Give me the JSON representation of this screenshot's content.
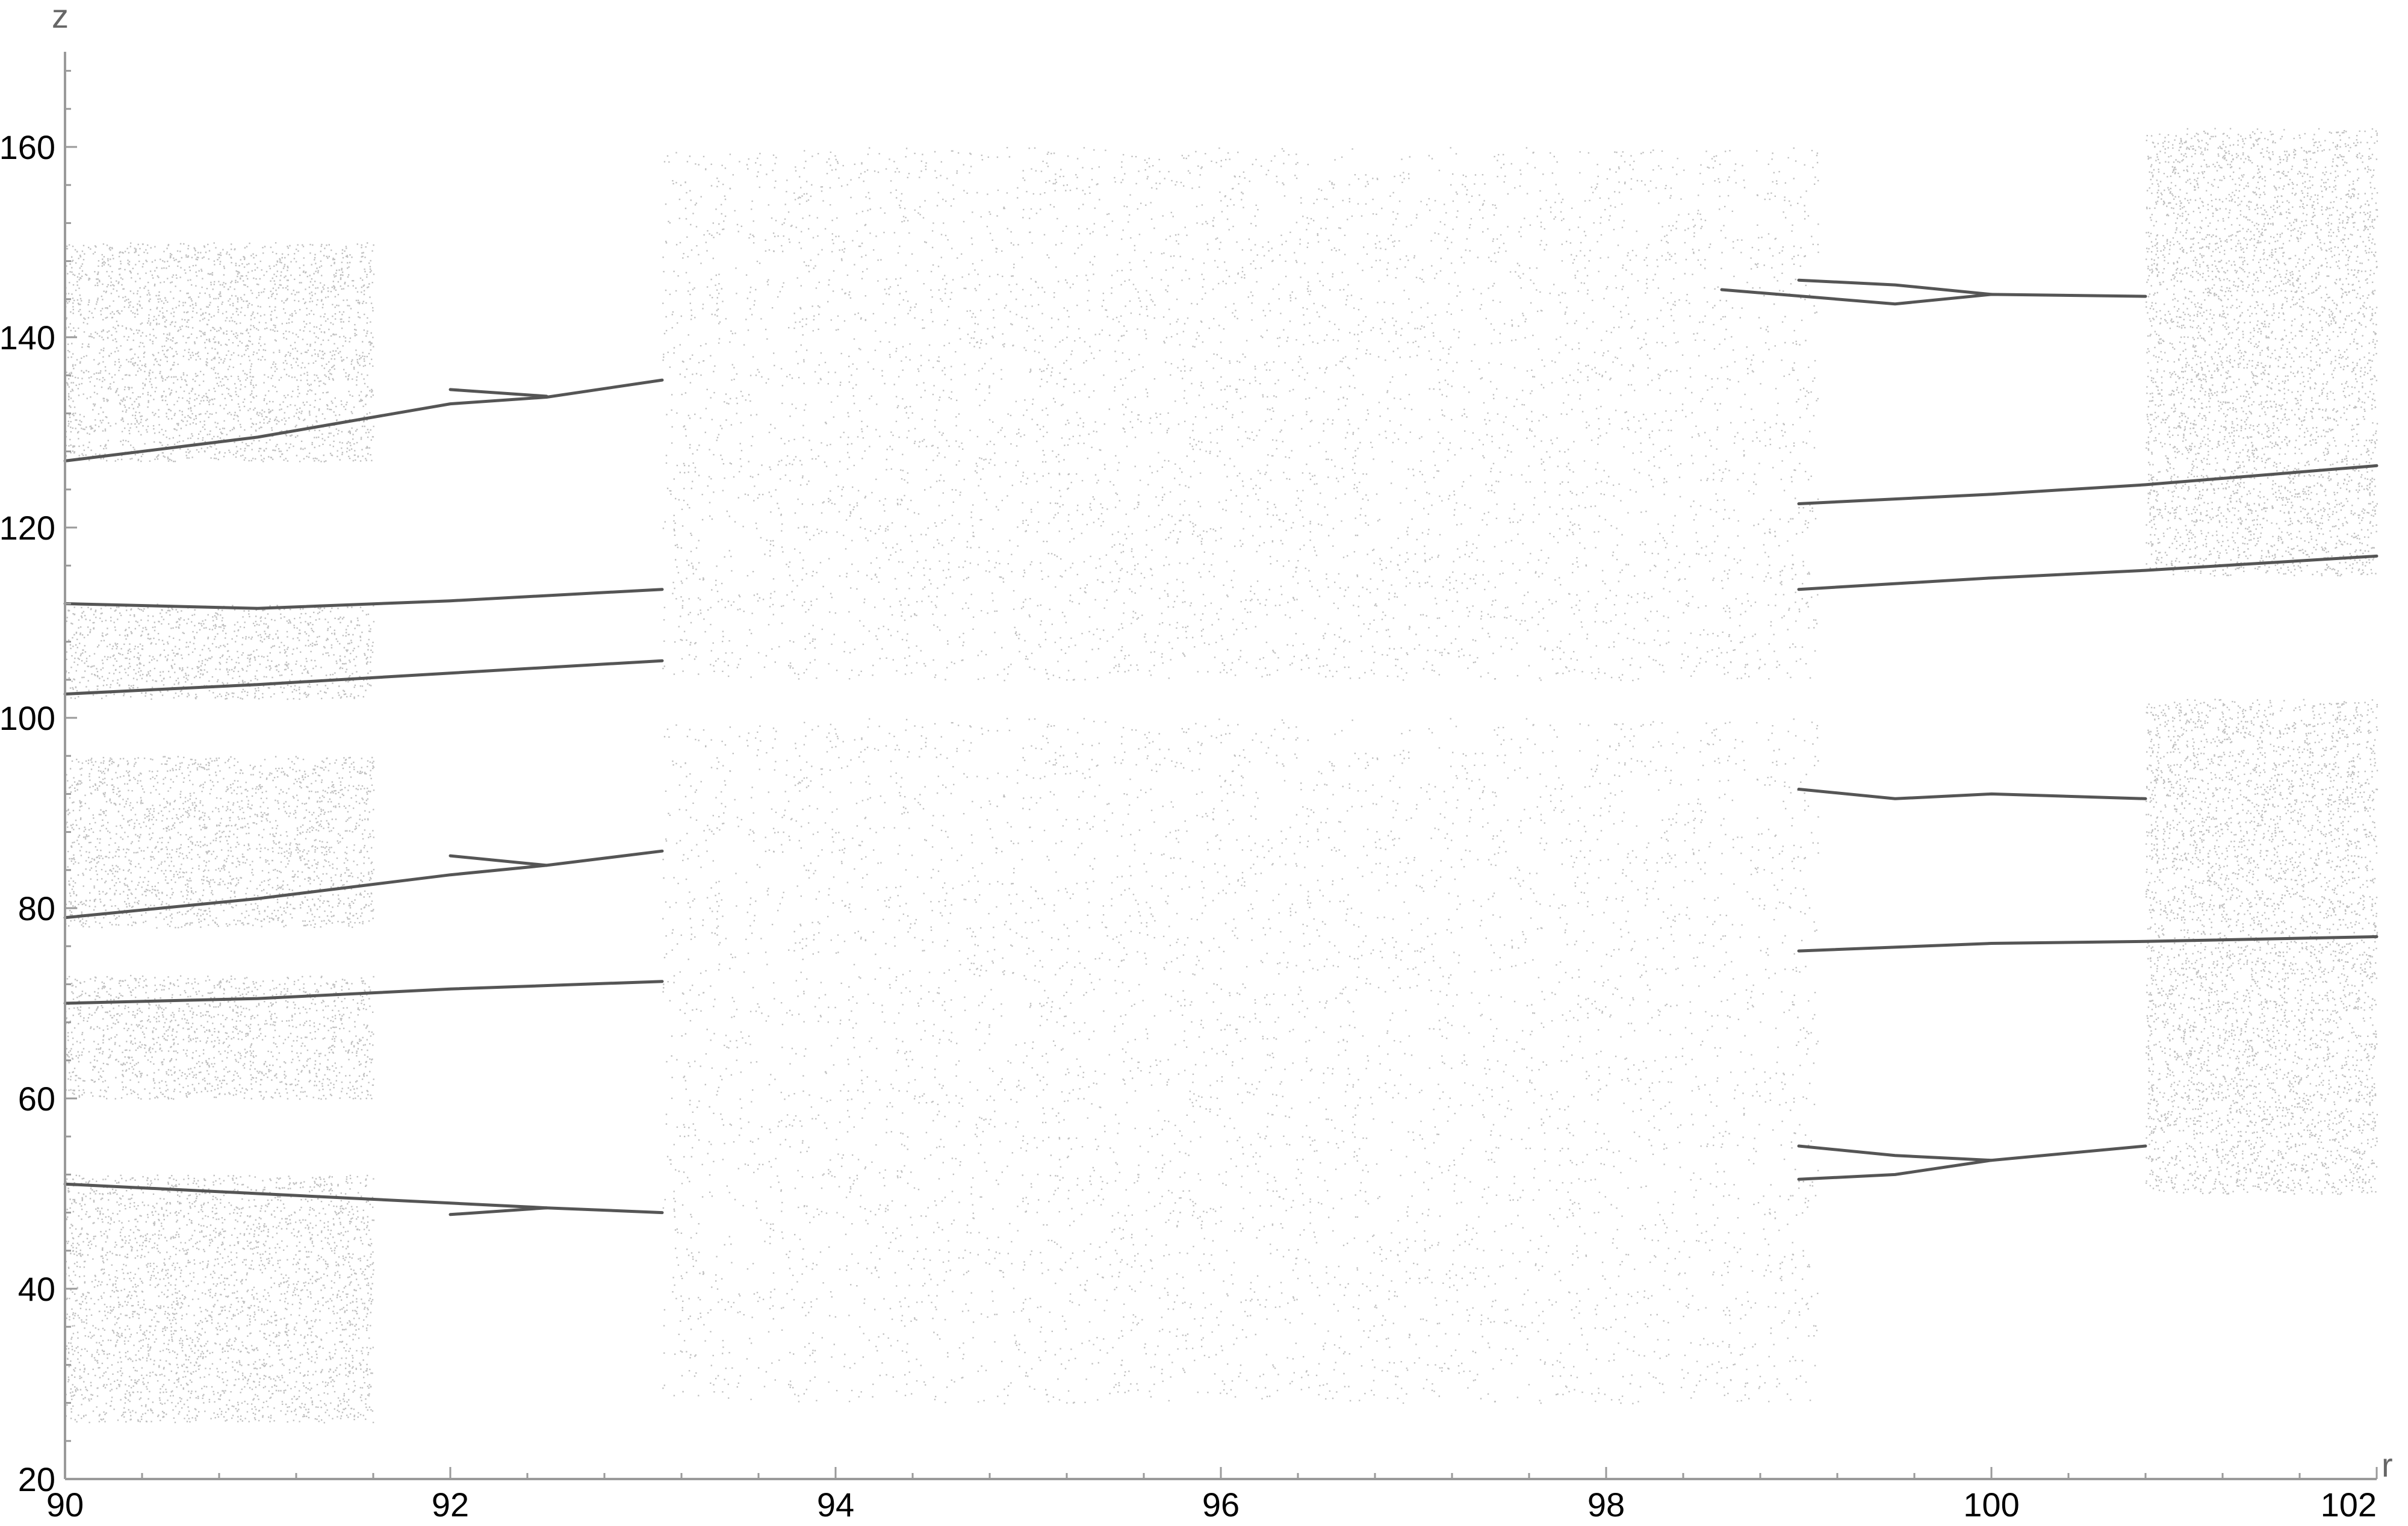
{
  "chart_data": {
    "type": "scatter",
    "title": "",
    "xlabel": "r",
    "ylabel": "z",
    "xlim": [
      90,
      102
    ],
    "ylim": [
      20,
      170
    ],
    "grid": false,
    "legend": "none",
    "x_ticks": [
      90,
      92,
      94,
      96,
      98,
      100,
      102
    ],
    "y_ticks": [
      20,
      40,
      60,
      80,
      100,
      120,
      140,
      160
    ],
    "x_tick_labels": [
      "90",
      "92",
      "94",
      "96",
      "98",
      "100",
      "102"
    ],
    "y_tick_labels": [
      "20",
      "40",
      "60",
      "80",
      "100",
      "120",
      "140",
      "160"
    ],
    "colors": {
      "points": "#4a4a4a",
      "branch": "#555555",
      "axis": "#9a9a9a"
    },
    "chaotic_regions": [
      {
        "r_range": [
          90.0,
          91.6
        ],
        "z_bands": [
          [
            26,
            52
          ],
          [
            60,
            73
          ],
          [
            78,
            96
          ],
          [
            102,
            112
          ],
          [
            127,
            150
          ]
        ]
      },
      {
        "r_range": [
          93.1,
          99.1
        ],
        "z_bands": [
          [
            28,
            100
          ],
          [
            104,
            160
          ]
        ]
      },
      {
        "r_range": [
          100.8,
          102.0
        ],
        "z_bands": [
          [
            50,
            102
          ],
          [
            115,
            162
          ]
        ]
      }
    ],
    "periodic_branches": [
      {
        "points": [
          [
            90.0,
            127.0
          ],
          [
            91.0,
            129.5
          ],
          [
            92.0,
            133.0
          ],
          [
            92.5,
            133.7
          ],
          [
            93.1,
            135.5
          ]
        ]
      },
      {
        "points": [
          [
            92.0,
            134.5
          ],
          [
            92.5,
            133.8
          ]
        ]
      },
      {
        "points": [
          [
            90.0,
            112.0
          ],
          [
            91.0,
            111.5
          ],
          [
            92.0,
            112.3
          ],
          [
            93.1,
            113.5
          ]
        ]
      },
      {
        "points": [
          [
            90.0,
            102.5
          ],
          [
            91.0,
            103.5
          ],
          [
            92.0,
            104.7
          ],
          [
            93.1,
            106.0
          ]
        ]
      },
      {
        "points": [
          [
            90.0,
            79.0
          ],
          [
            91.0,
            81.0
          ],
          [
            92.0,
            83.5
          ],
          [
            92.5,
            84.5
          ],
          [
            93.1,
            86.0
          ]
        ]
      },
      {
        "points": [
          [
            92.0,
            85.5
          ],
          [
            92.5,
            84.5
          ]
        ]
      },
      {
        "points": [
          [
            90.0,
            70.0
          ],
          [
            91.0,
            70.5
          ],
          [
            92.0,
            71.5
          ],
          [
            93.1,
            72.3
          ]
        ]
      },
      {
        "points": [
          [
            90.0,
            51.0
          ],
          [
            91.0,
            50.0
          ],
          [
            92.0,
            49.0
          ],
          [
            92.5,
            48.5
          ],
          [
            93.1,
            48.0
          ]
        ]
      },
      {
        "points": [
          [
            92.0,
            47.8
          ],
          [
            92.5,
            48.5
          ]
        ]
      },
      {
        "points": [
          [
            98.6,
            145.0
          ],
          [
            99.5,
            143.5
          ],
          [
            100.0,
            144.5
          ],
          [
            100.8,
            144.3
          ]
        ]
      },
      {
        "points": [
          [
            99.0,
            146.0
          ],
          [
            99.5,
            145.5
          ],
          [
            100.0,
            144.5
          ]
        ]
      },
      {
        "points": [
          [
            99.0,
            122.5
          ],
          [
            100.0,
            123.5
          ],
          [
            100.8,
            124.5
          ],
          [
            102.0,
            126.5
          ]
        ]
      },
      {
        "points": [
          [
            99.0,
            113.5
          ],
          [
            100.0,
            114.7
          ],
          [
            100.8,
            115.5
          ],
          [
            102.0,
            117.0
          ]
        ]
      },
      {
        "points": [
          [
            99.0,
            92.5
          ],
          [
            99.5,
            91.5
          ],
          [
            100.0,
            92.0
          ],
          [
            100.8,
            91.5
          ]
        ]
      },
      {
        "points": [
          [
            99.0,
            75.5
          ],
          [
            100.0,
            76.3
          ],
          [
            100.8,
            76.5
          ],
          [
            102.0,
            77.0
          ]
        ]
      },
      {
        "points": [
          [
            99.0,
            51.5
          ],
          [
            99.5,
            52.0
          ],
          [
            100.0,
            53.5
          ],
          [
            100.8,
            55.0
          ]
        ]
      },
      {
        "points": [
          [
            99.0,
            55.0
          ],
          [
            99.5,
            54.0
          ],
          [
            100.0,
            53.5
          ]
        ]
      }
    ]
  }
}
